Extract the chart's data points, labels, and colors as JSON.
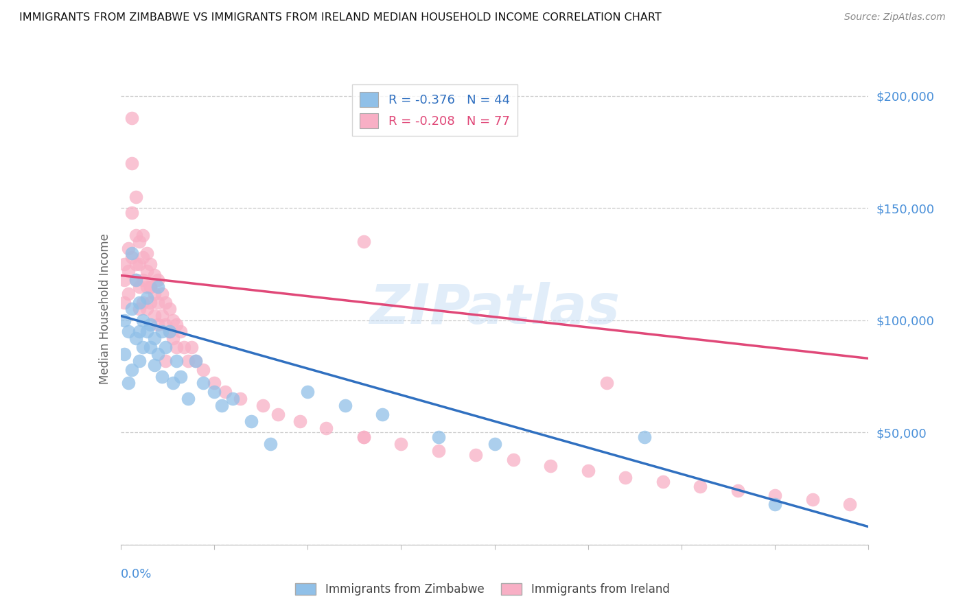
{
  "title": "IMMIGRANTS FROM ZIMBABWE VS IMMIGRANTS FROM IRELAND MEDIAN HOUSEHOLD INCOME CORRELATION CHART",
  "source": "Source: ZipAtlas.com",
  "ylabel": "Median Household Income",
  "yticks": [
    0,
    50000,
    100000,
    150000,
    200000
  ],
  "ytick_labels": [
    "",
    "$50,000",
    "$100,000",
    "$150,000",
    "$200,000"
  ],
  "xlim": [
    0.0,
    0.2
  ],
  "ylim": [
    0,
    210000
  ],
  "legend_r_zimbabwe": "-0.376",
  "legend_n_zimbabwe": "44",
  "legend_r_ireland": "-0.208",
  "legend_n_ireland": "77",
  "color_zimbabwe": "#90c0e8",
  "color_ireland": "#f8afc5",
  "color_trend_zimbabwe": "#3070c0",
  "color_trend_ireland": "#e04878",
  "color_ytick_labels": "#4a90d9",
  "color_xlabel": "#4a90d9",
  "color_ylabel": "#666666",
  "watermark": "ZIPatlas",
  "trend_zimbabwe_x0": 0.0,
  "trend_zimbabwe_y0": 102000,
  "trend_zimbabwe_x1": 0.2,
  "trend_zimbabwe_y1": 8000,
  "trend_ireland_x0": 0.0,
  "trend_ireland_y0": 120000,
  "trend_ireland_x1": 0.2,
  "trend_ireland_y1": 83000,
  "zimbabwe_x": [
    0.001,
    0.001,
    0.002,
    0.002,
    0.003,
    0.003,
    0.003,
    0.004,
    0.004,
    0.005,
    0.005,
    0.005,
    0.006,
    0.006,
    0.007,
    0.007,
    0.008,
    0.008,
    0.009,
    0.009,
    0.01,
    0.01,
    0.011,
    0.011,
    0.012,
    0.013,
    0.014,
    0.015,
    0.016,
    0.018,
    0.02,
    0.022,
    0.025,
    0.027,
    0.03,
    0.035,
    0.04,
    0.05,
    0.06,
    0.07,
    0.085,
    0.1,
    0.14,
    0.175
  ],
  "zimbabwe_y": [
    100000,
    85000,
    95000,
    72000,
    130000,
    105000,
    78000,
    118000,
    92000,
    108000,
    95000,
    82000,
    100000,
    88000,
    110000,
    95000,
    88000,
    98000,
    92000,
    80000,
    115000,
    85000,
    95000,
    75000,
    88000,
    95000,
    72000,
    82000,
    75000,
    65000,
    82000,
    72000,
    68000,
    62000,
    65000,
    55000,
    45000,
    68000,
    62000,
    58000,
    48000,
    45000,
    48000,
    18000
  ],
  "ireland_x": [
    0.001,
    0.001,
    0.001,
    0.002,
    0.002,
    0.002,
    0.003,
    0.003,
    0.003,
    0.003,
    0.004,
    0.004,
    0.004,
    0.004,
    0.005,
    0.005,
    0.005,
    0.005,
    0.006,
    0.006,
    0.006,
    0.006,
    0.007,
    0.007,
    0.007,
    0.007,
    0.008,
    0.008,
    0.008,
    0.009,
    0.009,
    0.009,
    0.01,
    0.01,
    0.01,
    0.011,
    0.011,
    0.012,
    0.012,
    0.013,
    0.013,
    0.014,
    0.014,
    0.015,
    0.015,
    0.016,
    0.017,
    0.018,
    0.019,
    0.02,
    0.022,
    0.025,
    0.028,
    0.032,
    0.038,
    0.042,
    0.048,
    0.055,
    0.065,
    0.075,
    0.085,
    0.095,
    0.105,
    0.115,
    0.125,
    0.135,
    0.145,
    0.155,
    0.165,
    0.175,
    0.185,
    0.195,
    0.065,
    0.13,
    0.065,
    0.012,
    0.008
  ],
  "ireland_y": [
    125000,
    118000,
    108000,
    132000,
    122000,
    112000,
    190000,
    170000,
    148000,
    128000,
    155000,
    138000,
    125000,
    118000,
    135000,
    125000,
    115000,
    105000,
    138000,
    128000,
    118000,
    108000,
    130000,
    122000,
    115000,
    105000,
    125000,
    115000,
    108000,
    120000,
    112000,
    102000,
    118000,
    108000,
    98000,
    112000,
    102000,
    108000,
    98000,
    105000,
    95000,
    100000,
    92000,
    98000,
    88000,
    95000,
    88000,
    82000,
    88000,
    82000,
    78000,
    72000,
    68000,
    65000,
    62000,
    58000,
    55000,
    52000,
    48000,
    45000,
    42000,
    40000,
    38000,
    35000,
    33000,
    30000,
    28000,
    26000,
    24000,
    22000,
    20000,
    18000,
    135000,
    72000,
    48000,
    82000,
    115000
  ]
}
